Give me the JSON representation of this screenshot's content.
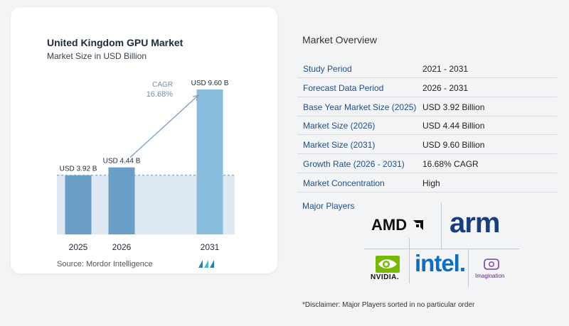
{
  "chart_data": {
    "type": "bar",
    "title": "United Kingdom GPU Market",
    "subtitle": "Market Size in USD Billion",
    "categories": [
      "2025",
      "2026",
      "2031"
    ],
    "values": [
      3.92,
      4.44,
      9.6
    ],
    "data_labels": [
      "USD 3.92 B",
      "USD 4.44 B",
      "USD 9.60 B"
    ],
    "cagr_label": "CAGR",
    "cagr_value": "16.68%",
    "bar_color": "#6a9fc8",
    "bar_color_light": "#88bddd",
    "highlight_color": "#dfe9f3",
    "ylim": [
      0,
      9.6
    ]
  },
  "source": "Source: Mordor Intelligence",
  "overview": {
    "title": "Market Overview",
    "rows": [
      {
        "label": "Study Period",
        "value": "2021 - 2031"
      },
      {
        "label": "Forecast Data Period",
        "value": "2026 - 2031"
      },
      {
        "label": "Base Year Market Size (2025)",
        "value": "USD 3.92 Billion"
      },
      {
        "label": "Market Size (2026)",
        "value": "USD 4.44 Billion"
      },
      {
        "label": "Market Size (2031)",
        "value": "USD 9.60 Billion"
      },
      {
        "label": "Growth Rate (2026 - 2031)",
        "value": "16.68% CAGR"
      },
      {
        "label": "Market Concentration",
        "value": "High"
      }
    ],
    "players_label": "Major Players"
  },
  "players": {
    "amd": "AMD",
    "arm": "arm",
    "nvidia": "NVIDIA.",
    "intel": "intel.",
    "imagination": "Imagination"
  },
  "disclaimer": "*Disclaimer: Major Players sorted in no particular order"
}
